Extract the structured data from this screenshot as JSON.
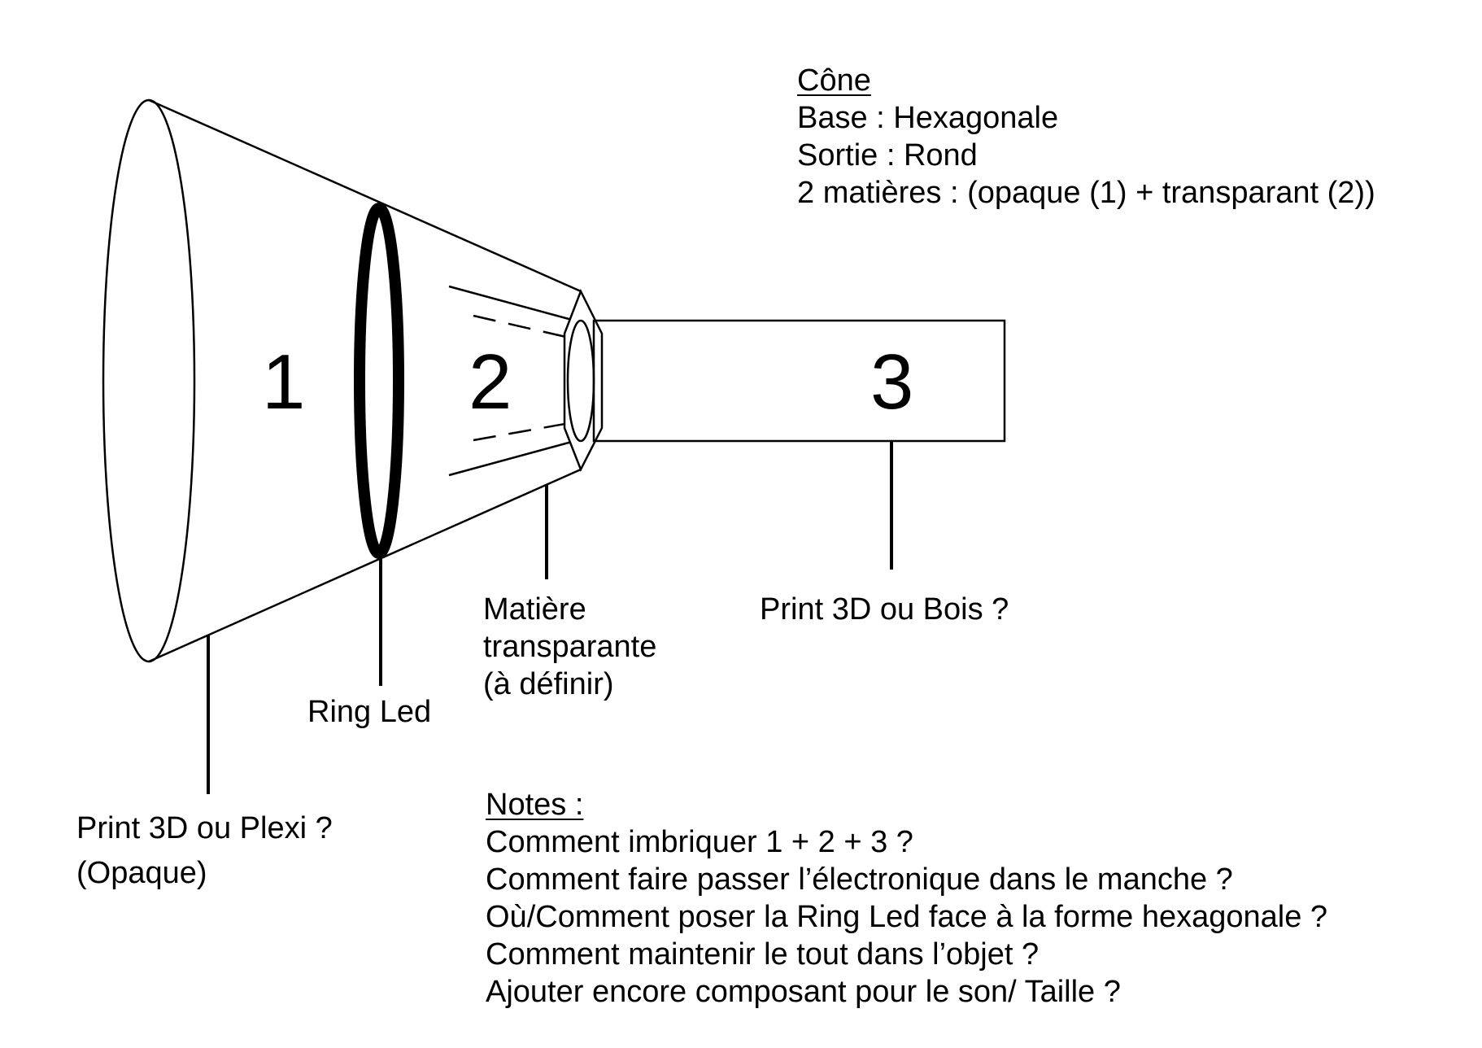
{
  "cone_specs": {
    "title": "Cône",
    "base": "Base : Hexagonale",
    "sortie": "Sortie : Rond",
    "materials": "2 matières : (opaque (1) + transparant (2))"
  },
  "parts": {
    "part1": "1",
    "part2": "2",
    "part3": "3"
  },
  "labels": {
    "cone_material_line1": "Print 3D ou Plexi ?",
    "cone_material_line2": "(Opaque)",
    "ring_led": "Ring Led",
    "transparent_line1": "Matière",
    "transparent_line2": "transparante",
    "transparent_line3": "(à définir)",
    "handle_material": "Print 3D ou Bois ?"
  },
  "notes": {
    "title": "Notes :",
    "items": [
      "Comment imbriquer 1 + 2 + 3 ?",
      "Comment faire passer l’électronique dans le manche ?",
      "Où/Comment poser la Ring Led face à la forme hexagonale ?",
      "Comment maintenir le tout dans l’objet ?",
      "Ajouter encore composant pour le son/ Taille ?"
    ]
  },
  "colors": {
    "stroke": "#000000",
    "background": "#ffffff"
  }
}
